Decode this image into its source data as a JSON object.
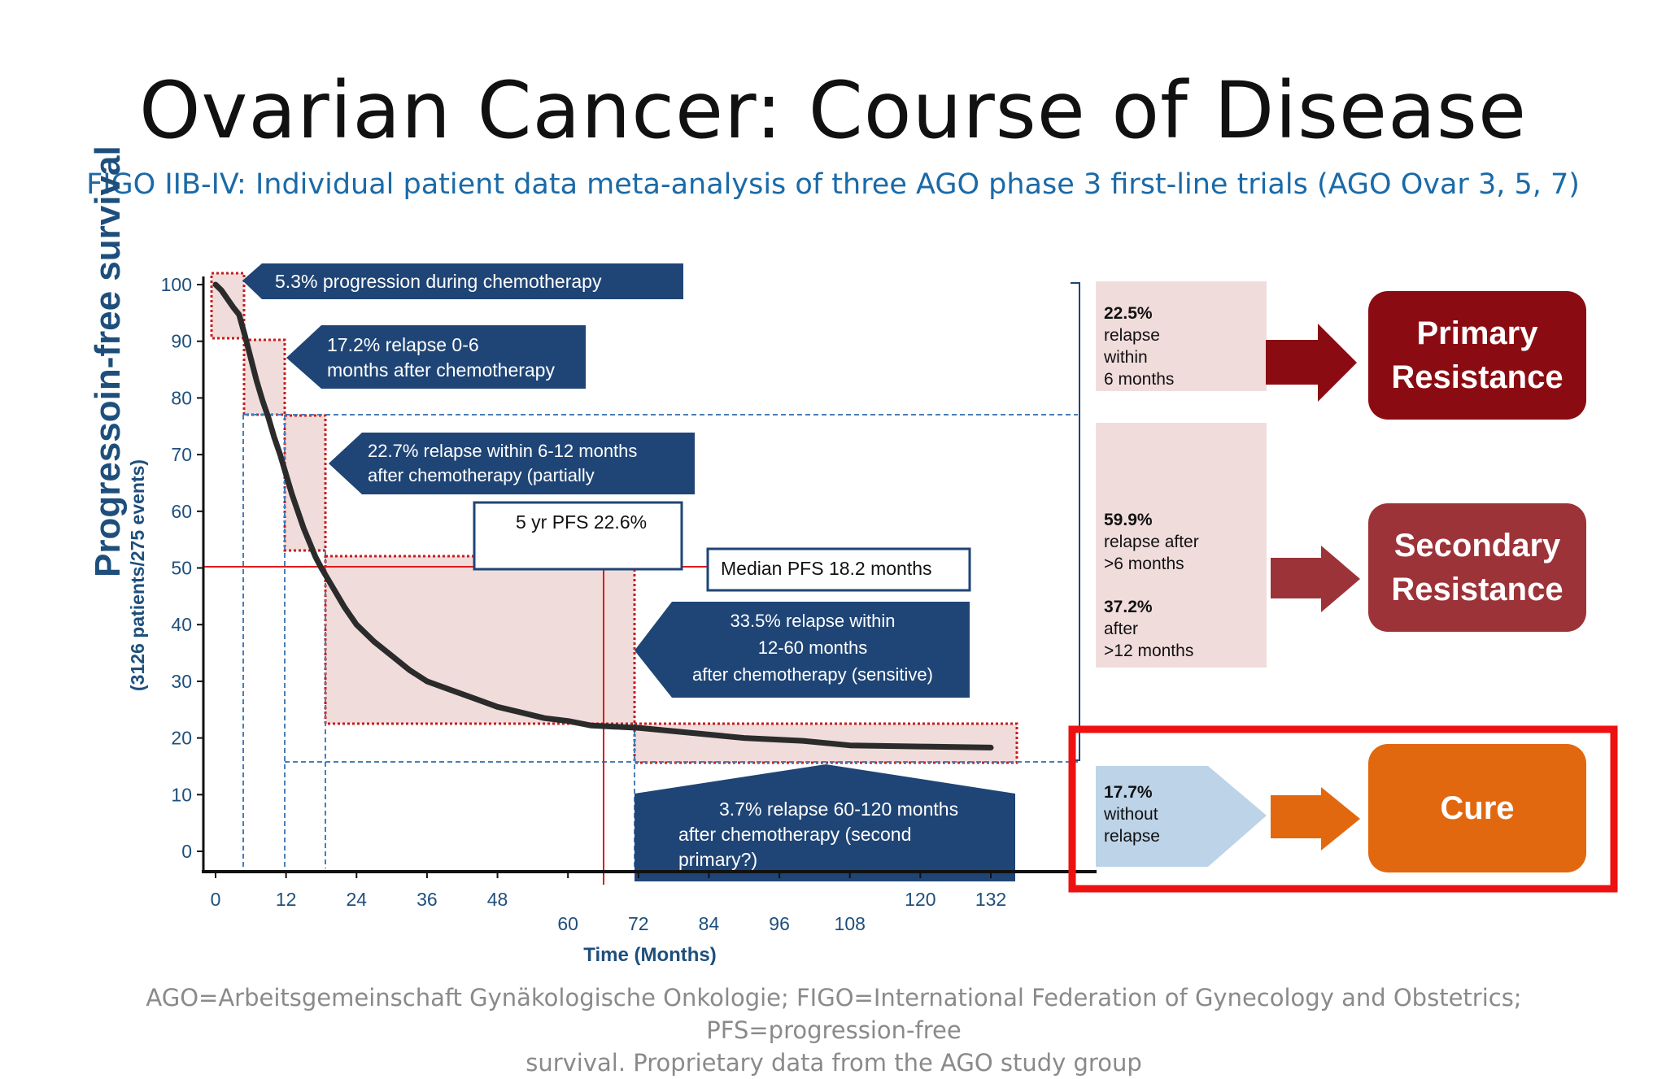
{
  "slide": {
    "title": "Ovarian Cancer: Course of Disease",
    "subtitle": "FIGO IIB-IV: Individual patient data meta-analysis of three AGO phase 3 first-line trials (AGO Ovar 3, 5, 7)",
    "footer_line1": "AGO=Arbeitsgemeinschaft Gynäkologische Onkologie; FIGO=International Federation of Gynecology and Obstetrics; PFS=progression-free",
    "footer_line2": "survival.  Proprietary data from the AGO study group"
  },
  "chart_data": {
    "type": "line",
    "title": "",
    "xlabel": "Time (Months)",
    "ylabel": "Progressoin-free survival",
    "ylabel_sub": "(3126 patients/275 events)",
    "xlim": [
      0,
      132
    ],
    "ylim": [
      0,
      100
    ],
    "x_ticks": [
      0,
      12,
      24,
      36,
      48,
      60,
      72,
      84,
      96,
      108,
      120,
      132
    ],
    "y_ticks": [
      0,
      10,
      20,
      30,
      40,
      50,
      60,
      70,
      80,
      90,
      100
    ],
    "grid": false,
    "series": [
      {
        "name": "",
        "x": [
          0,
          1,
          2,
          3,
          4,
          5,
          6,
          7,
          8,
          9,
          10,
          11,
          12,
          13,
          14,
          15,
          16,
          17,
          18,
          20,
          22,
          24,
          27,
          30,
          33,
          36,
          40,
          44,
          48,
          52,
          56,
          60,
          64,
          68,
          72,
          80,
          90,
          100,
          108,
          120,
          132
        ],
        "y": [
          100,
          99,
          97.5,
          96,
          94.7,
          91,
          87,
          83,
          79.5,
          76.5,
          73,
          70,
          66.5,
          63,
          60,
          57,
          54.5,
          52,
          50,
          46.5,
          43,
          40,
          37,
          34.5,
          32,
          30,
          28.5,
          27,
          25.5,
          24.5,
          23.5,
          23,
          22.2,
          22,
          21.8,
          21,
          20,
          19.5,
          18.7,
          18.5,
          18.3
        ],
        "color": "#2b2b2b"
      }
    ],
    "reference_lines": {
      "median_pfs_months": 18.2,
      "five_year_pfs_percent": 22.6
    },
    "annotations": {
      "a1": "5.3% progression during chemotherapy",
      "a2_line1": "17.2% relapse 0-6",
      "a2_line2": "months after chemotherapy",
      "a3_line1": "22.7% relapse within 6-12 months",
      "a3_line2": "after chemotherapy (partially",
      "a4_line1": "33.5% relapse within",
      "a4_line2": "12-60 months",
      "a4_line3": "after chemotherapy (sensitive)",
      "a5_line1": "3.7% relapse 60-120 months",
      "a5_line2": "after chemotherapy (second",
      "a5_line3": "primary?)",
      "five_year": "5 yr PFS 22.6%",
      "median": "Median PFS 18.2 months"
    }
  },
  "right_panel": {
    "r1_pct": "22.5%",
    "r1_l1": "relapse",
    "r1_l2": "within",
    "r1_l3": "6 months",
    "r2_pct": "59.9%",
    "r2_l1": "relapse after",
    "r2_l2": ">6 months",
    "r2_pct2": "37.2%",
    "r2_l3": "after",
    "r2_l4": ">12 months",
    "r3_pct": "17.7%",
    "r3_l1": "without",
    "r3_l2": "relapse",
    "pill1_l1": "Primary",
    "pill1_l2": "Resistance",
    "pill2_l1": "Secondary",
    "pill2_l2": "Resistance",
    "pill3": "Cure",
    "colors": {
      "primary": "#8a0c12",
      "secondary": "#9c3338",
      "cure": "#e2680f",
      "highlight": "#ee1111",
      "navy": "#1f4576",
      "pink_fill": "#f1dcdc",
      "blue_fill": "#bcd3e8"
    }
  }
}
